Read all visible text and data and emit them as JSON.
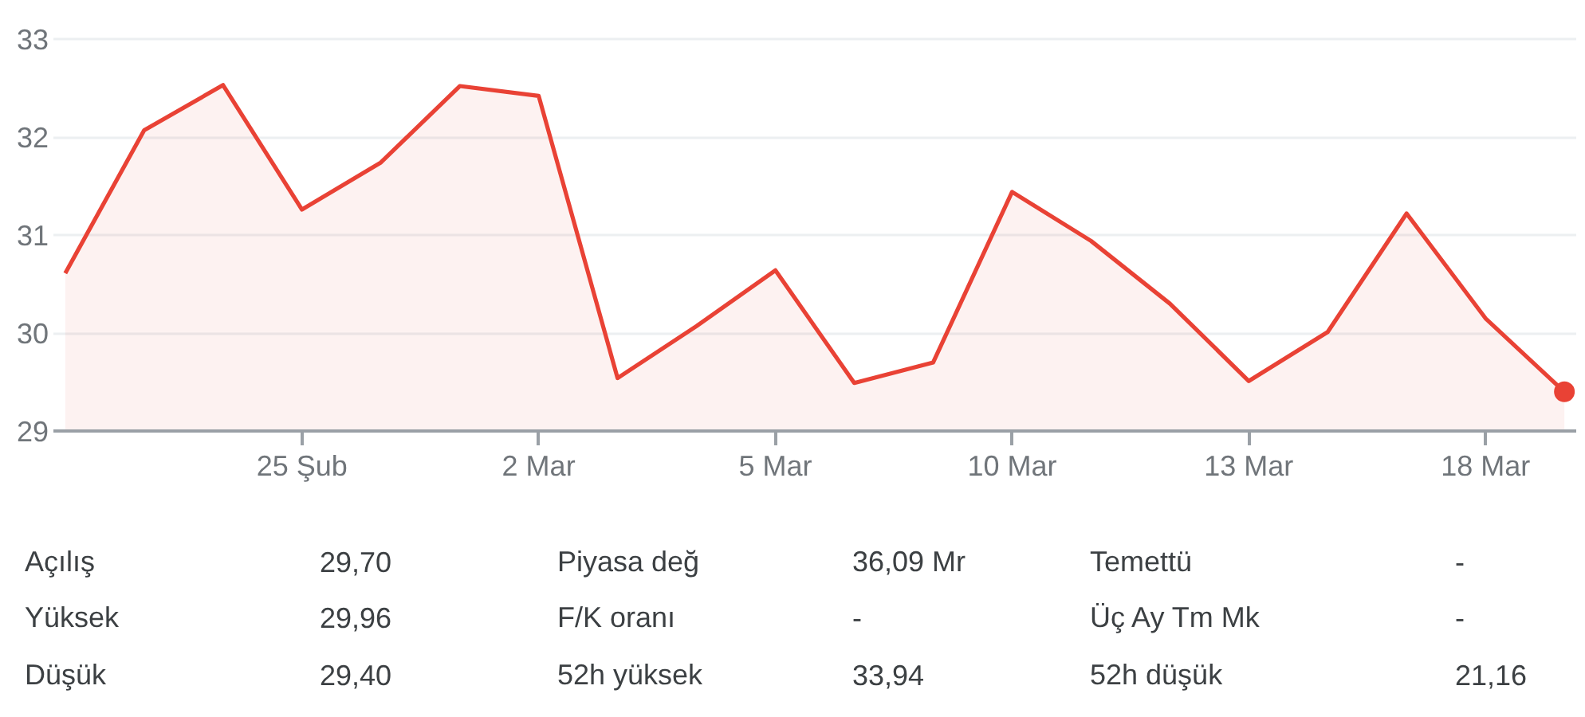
{
  "chart_data": [
    {
      "type": "area",
      "categories": [
        null,
        null,
        null,
        "25 Şub",
        null,
        null,
        "2 Mar",
        null,
        null,
        "5 Mar",
        null,
        null,
        "10 Mar",
        null,
        null,
        "13 Mar",
        null,
        null,
        "18 Mar",
        null
      ],
      "series": [
        {
          "color": "#e94235",
          "values": [
            30.61,
            32.07,
            32.53,
            31.26,
            31.74,
            32.52,
            32.42,
            29.54,
            30.07,
            30.64,
            29.49,
            29.7,
            31.44,
            30.94,
            30.3,
            29.51,
            30.01,
            31.22,
            30.15,
            29.4
          ]
        },
        {
          "type": "scatter",
          "marker": "circle",
          "color": "#e94235",
          "values": [
            null,
            null,
            null,
            null,
            null,
            null,
            null,
            null,
            null,
            null,
            null,
            null,
            null,
            null,
            null,
            null,
            null,
            null,
            null,
            29.4
          ]
        }
      ],
      "ylim": [
        29,
        33
      ],
      "yticks": [
        29,
        30,
        31,
        32,
        33
      ],
      "grid": "y"
    },
    {
      "type": "other",
      "annotations": [
        "Açılış",
        "29,70",
        "Piyasa değ",
        "36,09 Mr",
        "Temettü",
        "-",
        "Yüksek",
        "29,96",
        "F/K oranı",
        "-",
        "Üç Ay Tm Mk",
        "-",
        "Düşük",
        "29,40",
        "52h yüksek",
        "33,94",
        "52h düşük",
        "21,16"
      ]
    }
  ]
}
